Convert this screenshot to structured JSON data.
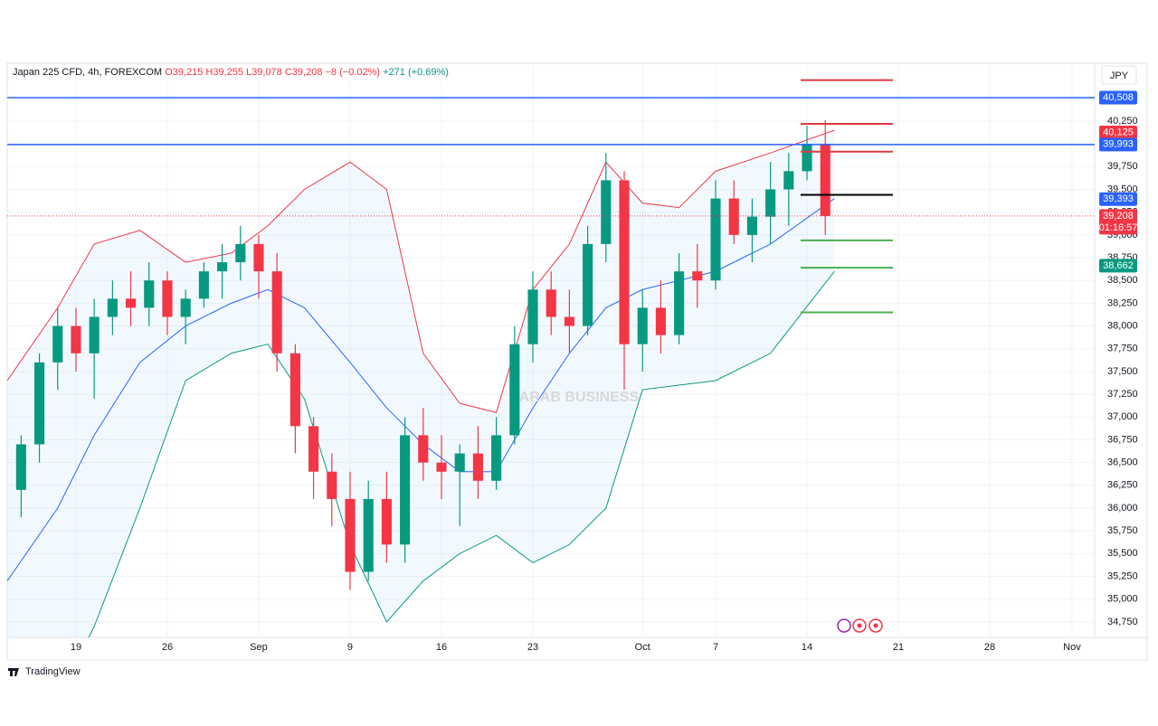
{
  "chart_data": {
    "type": "candlestick",
    "header": {
      "symbol": "Japan 225 CFD, 4h, FOREXCOM",
      "ohlc": "O39,215 H39,255 L39,078 C39,208",
      "change": "−8 (−0.02%)",
      "extra": "+271 (+0.69%)"
    },
    "currency": "JPY",
    "brand": "TradingView",
    "watermark": "ARAB BUSINESS",
    "up_color": "#089981",
    "down_color": "#f23645",
    "x": [
      -3,
      -2,
      -1,
      0,
      1,
      2,
      3,
      4,
      5,
      6,
      7,
      8,
      9,
      10,
      11,
      12,
      13,
      14,
      15,
      16,
      17,
      18,
      19,
      20,
      21,
      22,
      23,
      24,
      25,
      26,
      27,
      28,
      29,
      30,
      31,
      32,
      33,
      34,
      35,
      36,
      37,
      38,
      39,
      40,
      41
    ],
    "open": [
      36200,
      36700,
      37600,
      38000,
      37700,
      38100,
      38300,
      38200,
      38500,
      38100,
      38300,
      38600,
      38700,
      38900,
      38600,
      37700,
      36900,
      36400,
      36100,
      35300,
      36100,
      35600,
      36800,
      36500,
      36400,
      36600,
      36300,
      36800,
      37800,
      38400,
      38100,
      38000,
      38900,
      39600,
      37800,
      38200,
      37900,
      38600,
      38500,
      39400,
      39000,
      39200,
      39500,
      39700,
      40000
    ],
    "high": [
      36800,
      37700,
      38200,
      38200,
      38300,
      38500,
      38600,
      38700,
      38600,
      38400,
      38700,
      38900,
      39100,
      39000,
      38800,
      37800,
      37000,
      36600,
      36400,
      36300,
      36400,
      37000,
      37100,
      36800,
      36700,
      36900,
      37000,
      38000,
      38600,
      38600,
      38400,
      39100,
      39900,
      39700,
      38400,
      38500,
      38800,
      38900,
      39600,
      39600,
      39400,
      39800,
      39900,
      40200,
      40260
    ],
    "low": [
      35900,
      36500,
      37300,
      37500,
      37200,
      37900,
      38000,
      38000,
      37900,
      37800,
      38200,
      38300,
      38500,
      38300,
      37500,
      36600,
      36100,
      35800,
      35100,
      35200,
      35400,
      35400,
      36300,
      36100,
      35800,
      36100,
      36200,
      36700,
      37600,
      37900,
      37700,
      37900,
      38700,
      37300,
      37500,
      37700,
      37800,
      38200,
      38400,
      38900,
      38700,
      38900,
      39100,
      39600,
      39000
    ],
    "close": [
      36700,
      37600,
      38000,
      37700,
      38100,
      38300,
      38200,
      38500,
      38100,
      38300,
      38600,
      38700,
      38900,
      38600,
      37700,
      36900,
      36400,
      36100,
      35300,
      36100,
      35600,
      36800,
      36500,
      36400,
      36600,
      36300,
      36800,
      37800,
      38400,
      38100,
      38000,
      38900,
      39600,
      37800,
      38200,
      37900,
      38600,
      38500,
      39400,
      39000,
      39200,
      39500,
      39700,
      40000,
      39208
    ],
    "bands": {
      "x": [
        -3.76,
        -1,
        1,
        3.5,
        6,
        8.5,
        10.5,
        12.5,
        15,
        17,
        19,
        21,
        23,
        25,
        27,
        29,
        31,
        33,
        35,
        38,
        41.5
      ],
      "series": [
        {
          "color": "#f23645",
          "fill": "upper",
          "values": [
            37400,
            38200,
            38900,
            39050,
            38700,
            38800,
            39100,
            39500,
            39800,
            39500,
            37700,
            37150,
            37050,
            38400,
            38900,
            39800,
            39350,
            39300,
            39700,
            39900,
            40150
          ]
        },
        {
          "color": "#2962ff",
          "values": [
            35200,
            36000,
            36800,
            37600,
            38000,
            38250,
            38400,
            38200,
            37600,
            37100,
            36700,
            36400,
            36400,
            37100,
            37700,
            38200,
            38400,
            38500,
            38600,
            38900,
            39400
          ]
        },
        {
          "color": "#089981",
          "fill": "lower",
          "values": [
            33300,
            33900,
            34700,
            36000,
            37400,
            37700,
            37800,
            37200,
            35600,
            34750,
            35200,
            35500,
            35700,
            35400,
            35600,
            36000,
            37300,
            37350,
            37400,
            37700,
            38600
          ]
        }
      ]
    },
    "hlines": [
      {
        "value": 40508,
        "color": "#2962ff"
      },
      {
        "value": 39993,
        "color": "#2962ff"
      }
    ],
    "levels": [
      {
        "value": 40700,
        "color": "#e03a3e",
        "xrange": [
          39.65,
          44.7
        ]
      },
      {
        "value": 40220,
        "color": "#e03a3e",
        "xrange": [
          39.65,
          44.7
        ]
      },
      {
        "value": 39915,
        "color": "#e03a3e",
        "xrange": [
          39.65,
          44.7
        ]
      },
      {
        "value": 39440,
        "color": "#000000",
        "xrange": [
          39.65,
          44.7
        ]
      },
      {
        "value": 38940,
        "color": "#4caf50",
        "xrange": [
          39.65,
          44.7
        ]
      },
      {
        "value": 38640,
        "color": "#4caf50",
        "xrange": [
          39.65,
          44.7
        ]
      },
      {
        "value": 38150,
        "color": "#4caf50",
        "xrange": [
          39.65,
          44.7
        ]
      }
    ],
    "last_price": 39208,
    "price_labels": [
      {
        "value": 40508,
        "label": "40,508",
        "color": "#2962ff"
      },
      {
        "value": 40125,
        "label": "40,125",
        "color": "#f23645"
      },
      {
        "value": 39993,
        "label": "39,993",
        "color": "#2962ff"
      },
      {
        "value": 39393,
        "label": "39,393",
        "color": "#2962ff"
      },
      {
        "value": 39208,
        "label": "39,208",
        "color": "#f23645",
        "countdown": "01:16:57"
      },
      {
        "value": 38662,
        "label": "38,662",
        "color": "#089981"
      }
    ],
    "xlim": [
      -3.76,
      55.74
    ],
    "ylim": [
      34580,
      40885
    ],
    "xticks": [
      {
        "value": 0,
        "label": "19"
      },
      {
        "value": 5,
        "label": "26"
      },
      {
        "value": 10,
        "label": "Sep"
      },
      {
        "value": 15,
        "label": "9"
      },
      {
        "value": 20,
        "label": "16"
      },
      {
        "value": 25,
        "label": "23"
      },
      {
        "value": 31,
        "label": "Oct"
      },
      {
        "value": 35,
        "label": "7"
      },
      {
        "value": 40,
        "label": "14"
      },
      {
        "value": 45,
        "label": "21"
      },
      {
        "value": 50,
        "label": "28"
      },
      {
        "value": 54.5,
        "label": "Nov"
      }
    ],
    "yticks": [
      {
        "value": 34750,
        "label": "34,750"
      },
      {
        "value": 35000,
        "label": "35,000"
      },
      {
        "value": 35250,
        "label": "35,250"
      },
      {
        "value": 35500,
        "label": "35,500"
      },
      {
        "value": 35750,
        "label": "35,750"
      },
      {
        "value": 36000,
        "label": "36,000"
      },
      {
        "value": 36250,
        "label": "36,250"
      },
      {
        "value": 36500,
        "label": "36,500"
      },
      {
        "value": 36750,
        "label": "36,750"
      },
      {
        "value": 37000,
        "label": "37,000"
      },
      {
        "value": 37250,
        "label": "37,250"
      },
      {
        "value": 37500,
        "label": "37,500"
      },
      {
        "value": 37750,
        "label": "37,750"
      },
      {
        "value": 38000,
        "label": "38,000"
      },
      {
        "value": 38250,
        "label": "38,250"
      },
      {
        "value": 38500,
        "label": "38,500"
      },
      {
        "value": 38750,
        "label": "38,750"
      },
      {
        "value": 39000,
        "label": "39,000"
      },
      {
        "value": 39250,
        "label": "39,250"
      },
      {
        "value": 39500,
        "label": "39,500"
      },
      {
        "value": 39750,
        "label": "39,750"
      },
      {
        "value": 40000,
        "label": "40,000"
      },
      {
        "value": 40250,
        "label": "40,250"
      }
    ],
    "grid": true
  }
}
